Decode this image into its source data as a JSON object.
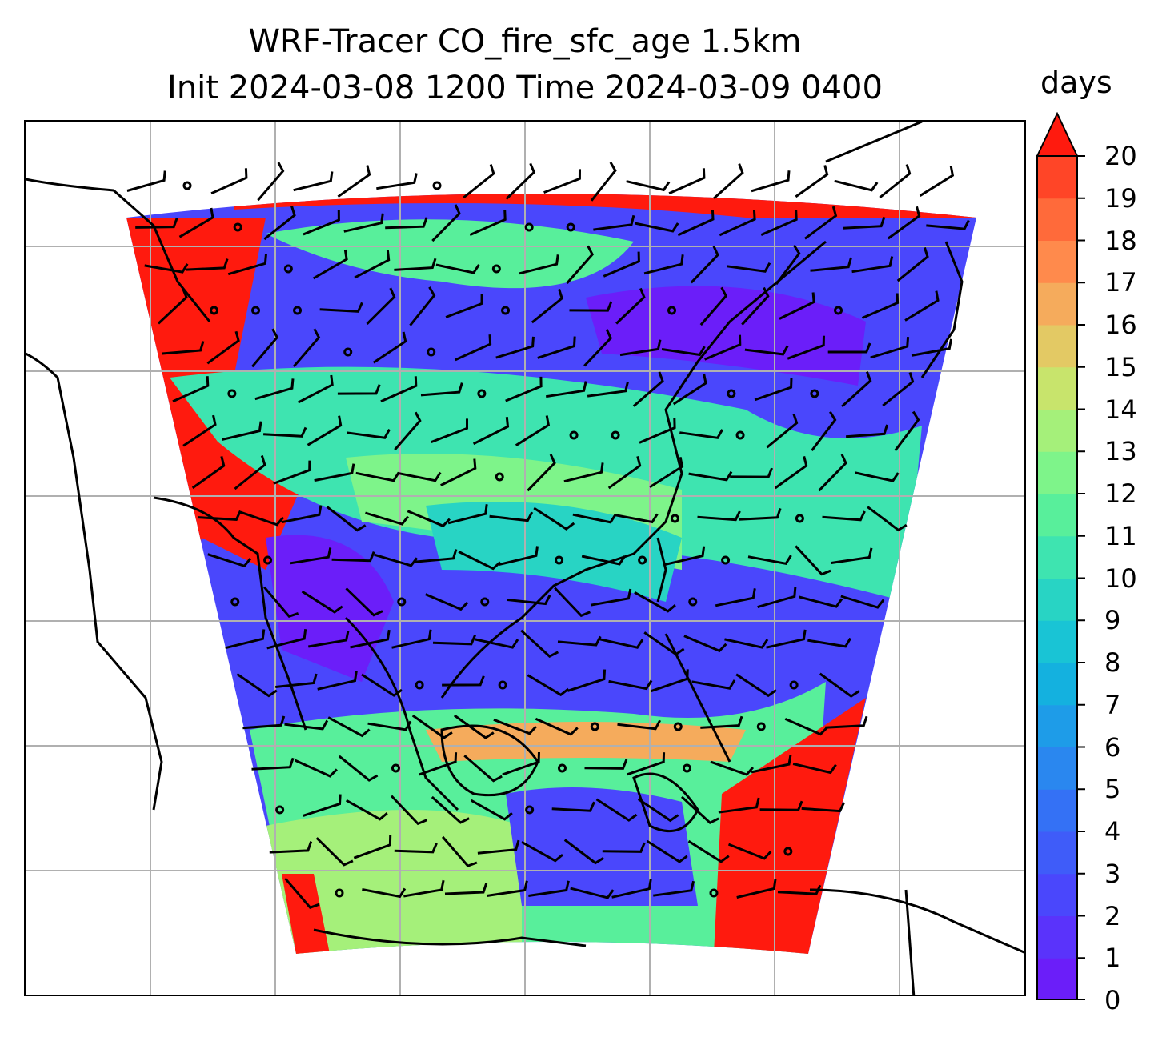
{
  "title": {
    "line1": "WRF-Tracer CO_fire_sfc_age 1.5km",
    "line2": "Init 2024-03-08 1200 Time 2024-03-09 0400"
  },
  "colorbar": {
    "unit_label": "days",
    "ticks": [
      "0",
      "1",
      "2",
      "3",
      "4",
      "5",
      "6",
      "7",
      "8",
      "9",
      "10",
      "11",
      "12",
      "13",
      "14",
      "15",
      "16",
      "17",
      "18",
      "19",
      "20"
    ],
    "colors": [
      "#6b1ef9",
      "#5a33fb",
      "#4a47fc",
      "#3f5cf9",
      "#3471f5",
      "#2a87ef",
      "#1e9ce8",
      "#14b1df",
      "#19c4d5",
      "#28d4c4",
      "#3ee4b0",
      "#58ef9b",
      "#7ef48a",
      "#a5f07a",
      "#c8e46c",
      "#e3c964",
      "#f5ab5c",
      "#ff8a4c",
      "#ff6a3a",
      "#ff4527",
      "#ff1a0e"
    ],
    "extend": "max"
  },
  "map": {
    "colors": {
      "ocean_outside": "#ffffff",
      "coastline": "#000000",
      "gridline": "#b0b0b0",
      "barb": "#000000"
    }
  }
}
